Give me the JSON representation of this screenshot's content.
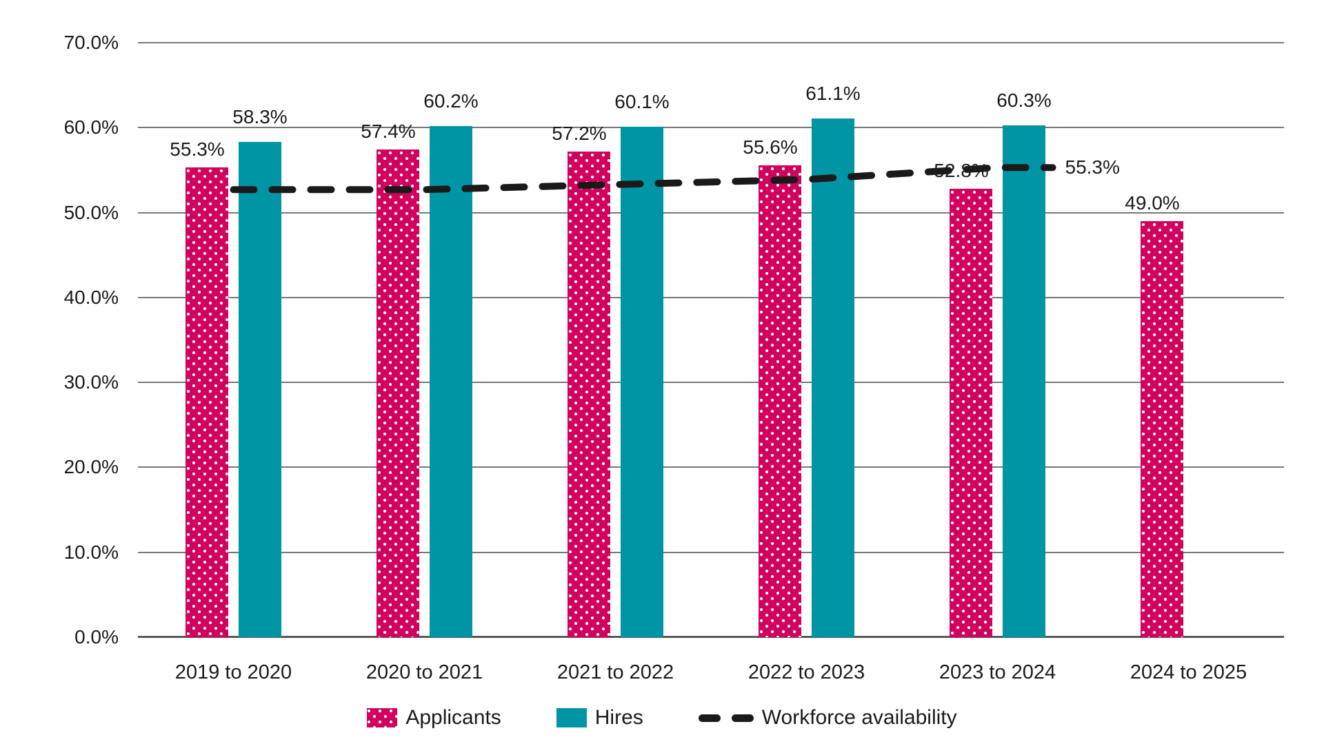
{
  "page": {
    "background": "#ffffff"
  },
  "chart_data": {
    "type": "bar",
    "title": "",
    "categories": [
      "2019 to 2020",
      "2020 to 2021",
      "2021 to 2022",
      "2022 to 2023",
      "2023 to 2024",
      "2024 to 2025"
    ],
    "series": [
      {
        "name": "Applicants",
        "kind": "bar",
        "color": "#d1015d",
        "pattern": "white-dots",
        "values": [
          55.3,
          57.4,
          57.2,
          55.6,
          52.8,
          49.0
        ],
        "labels": [
          "55.3%",
          "57.4%",
          "57.2%",
          "55.6%",
          "52.8%",
          "49.0%"
        ]
      },
      {
        "name": "Hires",
        "kind": "bar",
        "color": "#0095a4",
        "values": [
          58.3,
          60.2,
          60.1,
          61.1,
          60.3,
          null
        ],
        "labels": [
          "58.3%",
          "60.2%",
          "60.1%",
          "61.1%",
          "60.3%",
          null
        ]
      },
      {
        "name": "Workforce availability",
        "kind": "line",
        "dashed": true,
        "color": "#1a1a1a",
        "values": [
          52.7,
          52.7,
          53.3,
          53.9,
          55.3,
          null
        ],
        "end_label": "55.3%"
      }
    ],
    "ylim": [
      0,
      70
    ],
    "ytick_step": 10,
    "ytick_labels": [
      "0.0%",
      "10.0%",
      "20.0%",
      "30.0%",
      "40.0%",
      "50.0%",
      "60.0%",
      "70.0%"
    ],
    "grid": true,
    "legend_position": "bottom",
    "axis_colors": {
      "gridline": "#767676",
      "axis_line": "#595959",
      "text": "#1a1a1a"
    }
  }
}
